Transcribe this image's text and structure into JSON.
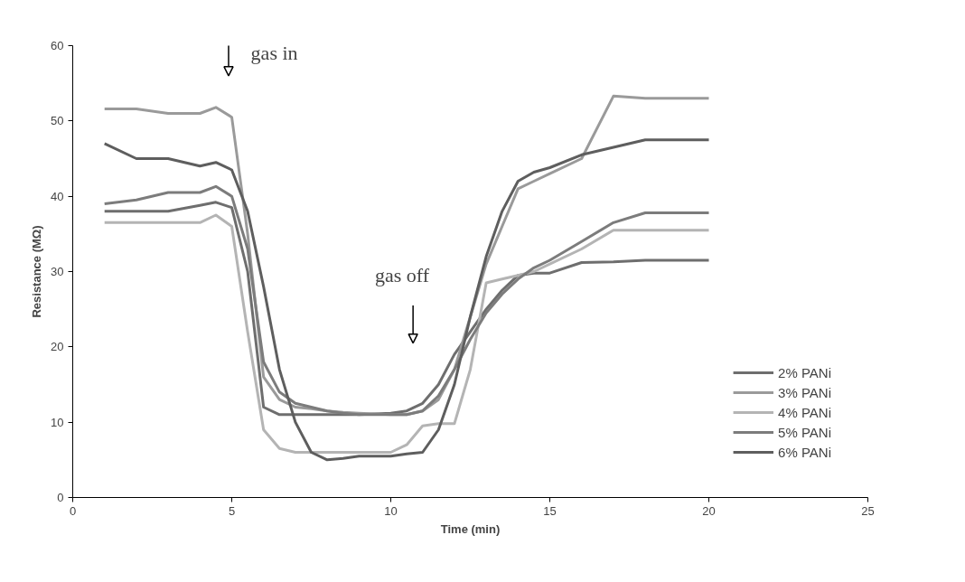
{
  "chart_data": {
    "type": "line",
    "xlabel": "Time (min)",
    "ylabel": "Resistance (MΩ)",
    "x": [
      1,
      2,
      3,
      4,
      4.5,
      5,
      5.5,
      6,
      6.5,
      7,
      7.5,
      8,
      8.5,
      9,
      10,
      10.5,
      11,
      11.5,
      12,
      12.5,
      13,
      13.5,
      14,
      14.5,
      15,
      16,
      17,
      18,
      19,
      20
    ],
    "series": [
      {
        "name": "2% PANi",
        "color": "#6e6e6e",
        "values": [
          38,
          38,
          38,
          38.8,
          39.2,
          38.5,
          30,
          12,
          11,
          11,
          11,
          11,
          11,
          11,
          11.2,
          11.5,
          12.5,
          15,
          19,
          22,
          25,
          27.5,
          29.5,
          29.8,
          29.8,
          31.2,
          31.3,
          31.5,
          31.5,
          31.5
        ]
      },
      {
        "name": "3% PANi",
        "color": "#9a9a9a",
        "values": [
          51.6,
          51.6,
          51,
          51,
          51.8,
          50.5,
          35,
          16,
          13,
          12,
          11.8,
          11.5,
          11.3,
          11.2,
          11,
          11,
          11.5,
          13,
          17,
          24,
          31,
          36,
          41,
          42,
          43,
          45,
          53.3,
          53,
          53,
          53
        ]
      },
      {
        "name": "4% PANi",
        "color": "#b4b4b4",
        "values": [
          36.5,
          36.5,
          36.5,
          36.5,
          37.5,
          36,
          22,
          9,
          6.5,
          6,
          6,
          6,
          6,
          6,
          6,
          7,
          9.5,
          9.8,
          9.8,
          17,
          28.5,
          29,
          29.5,
          30,
          31,
          33,
          35.5,
          35.5,
          35.5,
          35.5
        ]
      },
      {
        "name": "5% PANi",
        "color": "#7c7c7c",
        "values": [
          39,
          39.5,
          40.5,
          40.5,
          41.3,
          40,
          33,
          18,
          14,
          12.5,
          12,
          11.5,
          11.2,
          11,
          11,
          11,
          11.5,
          13.5,
          17,
          21,
          24.5,
          27,
          29,
          30.5,
          31.5,
          34,
          36.5,
          37.8,
          37.8,
          37.8
        ]
      },
      {
        "name": "6% PANi",
        "color": "#5e5e5e",
        "values": [
          47,
          45,
          45,
          44,
          44.5,
          43.5,
          38,
          28,
          17,
          10,
          6,
          5,
          5.2,
          5.5,
          5.5,
          5.8,
          6,
          9,
          15,
          24,
          32,
          38,
          42,
          43.2,
          43.8,
          45.5,
          46.5,
          47.5,
          47.5,
          47.5
        ]
      }
    ],
    "annotations": [
      "gas in",
      "gas off"
    ],
    "xlim": [
      0,
      25
    ],
    "xticks": [
      0,
      5,
      10,
      15,
      20,
      25
    ],
    "ylim": [
      0,
      60
    ],
    "yticks": [
      0,
      10,
      20,
      30,
      40,
      50,
      60
    ],
    "grid": false,
    "legend": "bottom right",
    "line_style": "solid",
    "marker": "none"
  }
}
